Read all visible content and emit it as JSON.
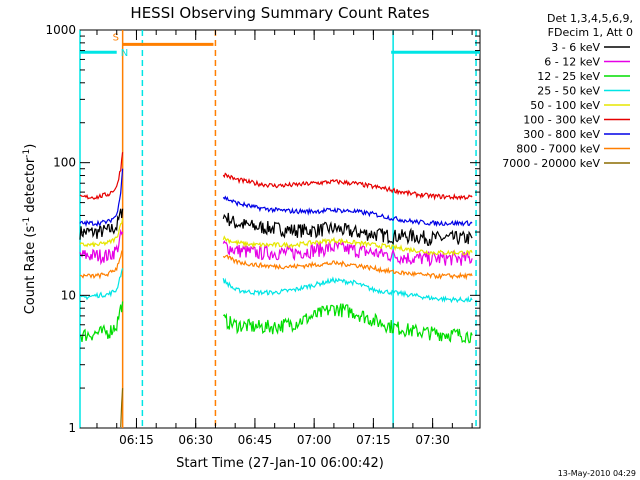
{
  "chart_data": {
    "type": "line",
    "title": "HESSI Observing Summary Count Rates",
    "xlabel": "Start Time (27-Jan-10 06:00:42)",
    "ylabel_main": "Count Rate (s",
    "ylabel_sup1": "-1",
    "ylabel_mid": " detector",
    "ylabel_sup2": "-1",
    "ylabel_end": ")",
    "y_scale": "log",
    "ylim": [
      1,
      1000
    ],
    "xlim": [
      "06:00:42",
      "07:42:00"
    ],
    "x_ticks": [
      "06:15",
      "06:30",
      "06:45",
      "07:00",
      "07:15",
      "07:30"
    ],
    "y_ticks": [
      "1",
      "10",
      "100",
      "1000"
    ],
    "legend_header": [
      "Det 1,3,4,5,6,9,",
      "FDecim 1, Att 0"
    ],
    "series": [
      {
        "name": "3 - 6 keV",
        "color": "#000000",
        "segments": [
          {
            "t": [
              "06:00:42",
              "06:05",
              "06:08",
              "06:10",
              "06:11:30"
            ],
            "v": [
              30,
              30,
              31,
              33,
              45
            ]
          },
          {
            "t": [
              "06:37",
              "06:40",
              "06:45",
              "06:50",
              "06:55",
              "07:00",
              "07:05",
              "07:10",
              "07:15",
              "07:20",
              "07:25",
              "07:30",
              "07:35",
              "07:40"
            ],
            "v": [
              40,
              35,
              33,
              32,
              31,
              31,
              32,
              30,
              29,
              28,
              28,
              27,
              27,
              27
            ]
          }
        ]
      },
      {
        "name": "6 - 12 keV",
        "color": "#e600e6",
        "segments": [
          {
            "t": [
              "06:00:42",
              "06:05",
              "06:08",
              "06:10",
              "06:11:30"
            ],
            "v": [
              20,
              20,
              20,
              22,
              30
            ]
          },
          {
            "t": [
              "06:37",
              "06:40",
              "06:45",
              "06:50",
              "06:55",
              "07:00",
              "07:05",
              "07:10",
              "07:15",
              "07:20",
              "07:25",
              "07:30",
              "07:35",
              "07:40"
            ],
            "v": [
              24,
              22,
              21,
              21,
              21,
              22,
              23,
              22,
              21,
              20,
              19,
              19,
              19,
              19
            ]
          }
        ]
      },
      {
        "name": "12 - 25 keV",
        "color": "#00dd00",
        "segments": [
          {
            "t": [
              "06:00:42",
              "06:05",
              "06:08",
              "06:10",
              "06:11:30"
            ],
            "v": [
              5,
              5.2,
              5.3,
              6,
              9
            ]
          },
          {
            "t": [
              "06:37",
              "06:40",
              "06:45",
              "06:50",
              "06:55",
              "07:00",
              "07:05",
              "07:10",
              "07:15",
              "07:20",
              "07:25",
              "07:30",
              "07:35",
              "07:40"
            ],
            "v": [
              6.5,
              6,
              5.8,
              5.8,
              6.2,
              7,
              8,
              7.5,
              6.5,
              5.8,
              5.4,
              5.2,
              5.1,
              5
            ]
          }
        ]
      },
      {
        "name": "25 - 50 keV",
        "color": "#00e5e5",
        "segments": [
          {
            "t": [
              "06:00:42",
              "06:05",
              "06:08",
              "06:10",
              "06:11:30"
            ],
            "v": [
              9.5,
              10,
              10.2,
              11,
              16
            ]
          },
          {
            "t": [
              "06:37",
              "06:40",
              "06:45",
              "06:50",
              "06:55",
              "07:00",
              "07:05",
              "07:10",
              "07:15",
              "07:20",
              "07:25",
              "07:30",
              "07:35",
              "07:40"
            ],
            "v": [
              13,
              11,
              10.5,
              10.5,
              11,
              12,
              13,
              12.5,
              11,
              10.5,
              10,
              9.5,
              9.3,
              9.2
            ]
          }
        ]
      },
      {
        "name": "50 - 100 keV",
        "color": "#e6e600",
        "segments": [
          {
            "t": [
              "06:00:42",
              "06:05",
              "06:08",
              "06:10",
              "06:11:30"
            ],
            "v": [
              24,
              24,
              25,
              27,
              38
            ]
          },
          {
            "t": [
              "06:37",
              "06:40",
              "06:45",
              "06:50",
              "06:55",
              "07:00",
              "07:05",
              "07:10",
              "07:15",
              "07:20",
              "07:25",
              "07:30",
              "07:35",
              "07:40"
            ],
            "v": [
              27,
              25,
              24,
              24,
              24,
              25,
              26,
              25,
              24,
              23,
              22,
              21,
              21,
              21
            ]
          }
        ]
      },
      {
        "name": "100 - 300 keV",
        "color": "#e60000",
        "segments": [
          {
            "t": [
              "06:00:42",
              "06:05",
              "06:08",
              "06:10",
              "06:11",
              "06:11:30"
            ],
            "v": [
              55,
              55,
              58,
              65,
              90,
              120
            ]
          },
          {
            "t": [
              "06:37",
              "06:40",
              "06:45",
              "06:50",
              "06:55",
              "07:00",
              "07:05",
              "07:10",
              "07:15",
              "07:20",
              "07:25",
              "07:30",
              "07:35",
              "07:40"
            ],
            "v": [
              82,
              75,
              70,
              67,
              68,
              70,
              72,
              70,
              66,
              62,
              58,
              56,
              55,
              55
            ]
          }
        ]
      },
      {
        "name": "300 - 800 keV",
        "color": "#0000e6",
        "segments": [
          {
            "t": [
              "06:00:42",
              "06:05",
              "06:08",
              "06:10",
              "06:11",
              "06:11:30"
            ],
            "v": [
              35,
              35,
              36,
              40,
              60,
              90
            ]
          },
          {
            "t": [
              "06:37",
              "06:40",
              "06:45",
              "06:50",
              "06:55",
              "07:00",
              "07:05",
              "07:10",
              "07:15",
              "07:20",
              "07:25",
              "07:30",
              "07:35",
              "07:40"
            ],
            "v": [
              55,
              50,
              46,
              44,
              43,
              43,
              44,
              43,
              41,
              38,
              36,
              35,
              35,
              35
            ]
          }
        ]
      },
      {
        "name": "800 - 7000 keV",
        "color": "#ff7f00",
        "segments": [
          {
            "t": [
              "06:00:42",
              "06:05",
              "06:08",
              "06:10",
              "06:11:30"
            ],
            "v": [
              14,
              14,
              14.5,
              16,
              22
            ]
          },
          {
            "t": [
              "06:37",
              "06:40",
              "06:45",
              "06:50",
              "06:55",
              "07:00",
              "07:05",
              "07:10",
              "07:15",
              "07:20",
              "07:25",
              "07:30",
              "07:35",
              "07:40"
            ],
            "v": [
              20,
              18,
              17,
              16.5,
              16.5,
              17,
              17.5,
              17,
              16,
              15,
              14.5,
              14,
              14,
              14
            ]
          }
        ]
      },
      {
        "name": "7000 - 20000 keV",
        "color": "#8b6b00",
        "segments": [
          {
            "t": [
              "06:11",
              "06:11:30"
            ],
            "v": [
              1,
              2
            ]
          }
        ]
      }
    ],
    "attenuator_bars": [
      {
        "label": "S",
        "color": "#ff7f00",
        "start": "06:11:30",
        "end": "06:34:30",
        "level": 780
      },
      {
        "label": "N",
        "color": "#00e5e5",
        "start": "06:00:42",
        "end": "06:10",
        "level": 680
      },
      {
        "label": "",
        "color": "#00e5e5",
        "start": "07:19:30",
        "end": "07:42:00",
        "level": 680
      }
    ],
    "vertical_lines": [
      {
        "t": "06:11:30",
        "color": "#ff7f00",
        "style": "solid"
      },
      {
        "t": "06:16:30",
        "color": "#00e5e5",
        "style": "dashed"
      },
      {
        "t": "06:35:00",
        "color": "#ff7f00",
        "style": "dashed"
      },
      {
        "t": "07:20:00",
        "color": "#00e5e5",
        "style": "solid"
      },
      {
        "t": "07:41:00",
        "color": "#00e5e5",
        "style": "dashed"
      },
      {
        "t": "06:00:42",
        "color": "#00e5e5",
        "style": "solid"
      }
    ]
  },
  "footer_timestamp": "13-May-2010 04:29"
}
